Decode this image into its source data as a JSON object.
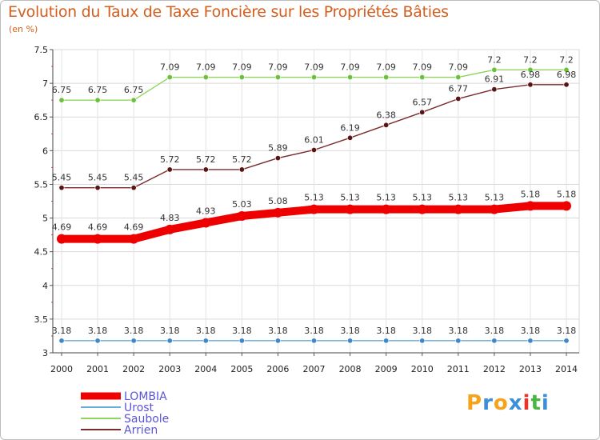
{
  "chart_data": {
    "type": "line",
    "title": "Evolution du Taux de Taxe Foncière sur les Propriétés Bâties",
    "ylabel": "(en %)",
    "xlabel": "",
    "categories": [
      "2000",
      "2001",
      "2002",
      "2003",
      "2004",
      "2005",
      "2006",
      "2007",
      "2008",
      "2009",
      "2010",
      "2011",
      "2012",
      "2013",
      "2014"
    ],
    "ylim": [
      3,
      7.5
    ],
    "yticks": [
      "3",
      "3.5",
      "4",
      "4.5",
      "5",
      "5.5",
      "6",
      "6.5",
      "7",
      "7.5"
    ],
    "grid": true,
    "series": [
      {
        "name": "Saubole",
        "color": "#8fd45c",
        "marker": "#6cc13a",
        "values": [
          6.75,
          6.75,
          6.75,
          7.09,
          7.09,
          7.09,
          7.09,
          7.09,
          7.09,
          7.09,
          7.09,
          7.09,
          7.2,
          7.2,
          7.2
        ],
        "labels": [
          "6.75",
          "6.75",
          "6.75",
          "7.09",
          "7.09",
          "7.09",
          "7.09",
          "7.09",
          "7.09",
          "7.09",
          "7.09",
          "7.09",
          "7.2",
          "7.2",
          "7.2"
        ]
      },
      {
        "name": "Arrien",
        "color": "#7b2b2b",
        "marker": "#5a1414",
        "values": [
          5.45,
          5.45,
          5.45,
          5.72,
          5.72,
          5.72,
          5.89,
          6.01,
          6.19,
          6.38,
          6.57,
          6.77,
          6.91,
          6.98,
          6.98
        ],
        "labels": [
          "5.45",
          "5.45",
          "5.45",
          "5.72",
          "5.72",
          "5.72",
          "5.89",
          "6.01",
          "6.19",
          "6.38",
          "6.57",
          "6.77",
          "6.91",
          "6.98",
          "6.98"
        ]
      },
      {
        "name": "LOMBIA",
        "color": "#ee0000",
        "marker": "#ee0000",
        "values": [
          4.69,
          4.69,
          4.69,
          4.83,
          4.93,
          5.03,
          5.08,
          5.13,
          5.13,
          5.13,
          5.13,
          5.13,
          5.13,
          5.18,
          5.18
        ],
        "labels": [
          "4.69",
          "4.69",
          "4.69",
          "4.83",
          "4.93",
          "5.03",
          "5.08",
          "5.13",
          "5.13",
          "5.13",
          "5.13",
          "5.13",
          "5.13",
          "5.18",
          "5.18"
        ]
      },
      {
        "name": "Urost",
        "color": "#6aa9d8",
        "marker": "#3d88c9",
        "values": [
          3.18,
          3.18,
          3.18,
          3.18,
          3.18,
          3.18,
          3.18,
          3.18,
          3.18,
          3.18,
          3.18,
          3.18,
          3.18,
          3.18,
          3.18
        ],
        "labels": [
          "3.18",
          "3.18",
          "3.18",
          "3.18",
          "3.18",
          "3.18",
          "3.18",
          "3.18",
          "3.18",
          "3.18",
          "3.18",
          "3.18",
          "3.18",
          "3.18",
          "3.18"
        ]
      }
    ],
    "legend": [
      "LOMBIA",
      "Urost",
      "Saubole",
      "Arrien"
    ],
    "legend_position": "bottom-left"
  },
  "logo": {
    "text": "Proxiti"
  }
}
